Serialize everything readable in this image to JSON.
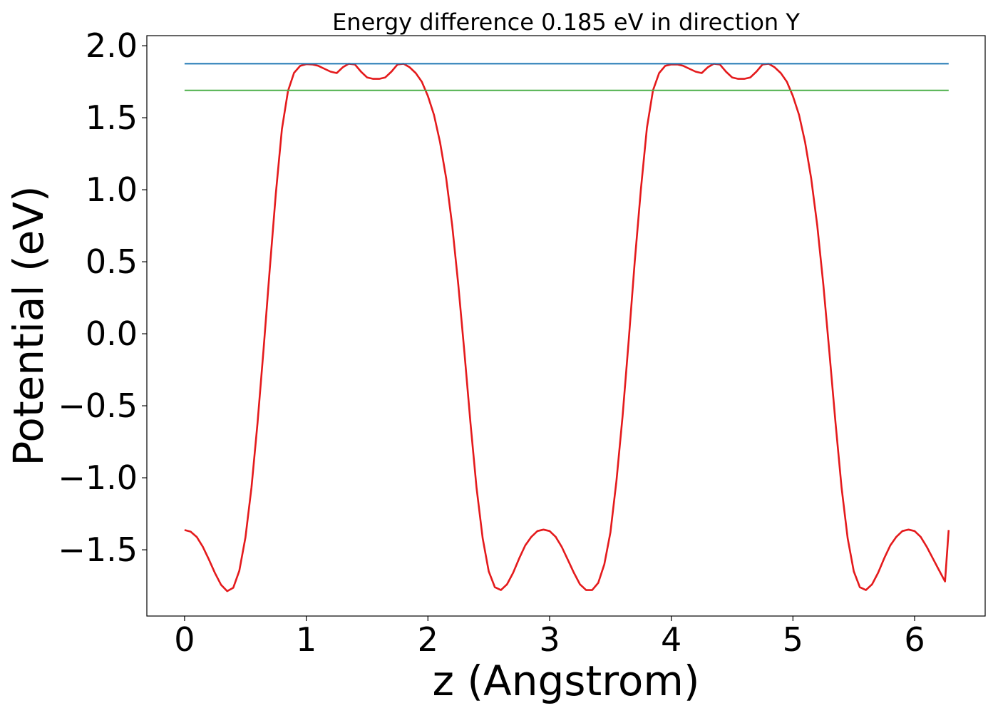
{
  "chart_data": {
    "type": "line",
    "title": "Energy difference 0.185 eV in direction Y",
    "xlabel": "z (Angstrom)",
    "ylabel": "Potential (eV)",
    "xlim": [
      -0.31,
      6.58
    ],
    "ylim": [
      -1.96,
      2.07
    ],
    "xticks": [
      0,
      1,
      2,
      3,
      4,
      5,
      6
    ],
    "yticks": [
      -1.5,
      -1.0,
      -0.5,
      0.0,
      0.5,
      1.0,
      1.5,
      2.0
    ],
    "xtick_labels": [
      "0",
      "1",
      "2",
      "3",
      "4",
      "5",
      "6"
    ],
    "ytick_labels": [
      "−1.5",
      "−1.0",
      "−0.5",
      "0.0",
      "0.5",
      "1.0",
      "1.5",
      "2.0"
    ],
    "grid": false,
    "legend": "none",
    "series": [
      {
        "color": "#e41a1c",
        "x": [
          0.0,
          0.05,
          0.1,
          0.15,
          0.2,
          0.25,
          0.3,
          0.35,
          0.4,
          0.45,
          0.5,
          0.55,
          0.6,
          0.65,
          0.7,
          0.75,
          0.8,
          0.85,
          0.9,
          0.95,
          1.0,
          1.05,
          1.1,
          1.15,
          1.2,
          1.25,
          1.3,
          1.35,
          1.4,
          1.45,
          1.5,
          1.55,
          1.6,
          1.65,
          1.7,
          1.75,
          1.8,
          1.85,
          1.9,
          1.95,
          2.0,
          2.05,
          2.1,
          2.15,
          2.2,
          2.25,
          2.3,
          2.35,
          2.4,
          2.45,
          2.5,
          2.55,
          2.6,
          2.65,
          2.7,
          2.75,
          2.8,
          2.85,
          2.9,
          2.95,
          3.0,
          3.05,
          3.1,
          3.15,
          3.2,
          3.25,
          3.3,
          3.35,
          3.4,
          3.45,
          3.5,
          3.55,
          3.6,
          3.65,
          3.7,
          3.75,
          3.8,
          3.85,
          3.9,
          3.95,
          4.0,
          4.05,
          4.1,
          4.15,
          4.2,
          4.25,
          4.3,
          4.35,
          4.4,
          4.45,
          4.5,
          4.55,
          4.6,
          4.65,
          4.7,
          4.75,
          4.8,
          4.85,
          4.9,
          4.95,
          5.0,
          5.05,
          5.1,
          5.15,
          5.2,
          5.25,
          5.3,
          5.35,
          5.4,
          5.45,
          5.5,
          5.55,
          5.6,
          5.65,
          5.7,
          5.75,
          5.8,
          5.85,
          5.9,
          5.95,
          6.0,
          6.05,
          6.1,
          6.15,
          6.2,
          6.25,
          6.28
        ],
        "y": [
          -1.363,
          -1.374,
          -1.411,
          -1.479,
          -1.567,
          -1.662,
          -1.743,
          -1.787,
          -1.764,
          -1.646,
          -1.415,
          -1.067,
          -0.618,
          -0.098,
          0.448,
          0.971,
          1.422,
          1.686,
          1.812,
          1.86,
          1.872,
          1.87,
          1.86,
          1.84,
          1.82,
          1.81,
          1.85,
          1.875,
          1.87,
          1.82,
          1.78,
          1.77,
          1.77,
          1.78,
          1.82,
          1.87,
          1.875,
          1.85,
          1.81,
          1.75,
          1.65,
          1.52,
          1.33,
          1.08,
          0.75,
          0.34,
          -0.13,
          -0.62,
          -1.07,
          -1.42,
          -1.65,
          -1.76,
          -1.78,
          -1.74,
          -1.66,
          -1.56,
          -1.47,
          -1.41,
          -1.37,
          -1.36,
          -1.37,
          -1.41,
          -1.48,
          -1.57,
          -1.66,
          -1.74,
          -1.78,
          -1.78,
          -1.73,
          -1.6,
          -1.38,
          -1.02,
          -0.57,
          -0.05,
          0.5,
          1.0,
          1.43,
          1.69,
          1.81,
          1.86,
          1.87,
          1.87,
          1.86,
          1.84,
          1.82,
          1.81,
          1.85,
          1.875,
          1.87,
          1.82,
          1.78,
          1.77,
          1.77,
          1.78,
          1.82,
          1.87,
          1.875,
          1.85,
          1.81,
          1.75,
          1.65,
          1.52,
          1.33,
          1.08,
          0.75,
          0.34,
          -0.13,
          -0.62,
          -1.07,
          -1.42,
          -1.65,
          -1.76,
          -1.78,
          -1.74,
          -1.66,
          -1.56,
          -1.47,
          -1.41,
          -1.37,
          -1.36,
          -1.37,
          -1.41,
          -1.48,
          -1.56,
          -1.64,
          -1.72,
          -1.363
        ]
      },
      {
        "color": "#1f77b4",
        "x": [
          0.0,
          6.28
        ],
        "y": [
          1.875,
          1.875
        ]
      },
      {
        "color": "#4daf4a",
        "x": [
          0.0,
          6.28
        ],
        "y": [
          1.69,
          1.69
        ]
      }
    ]
  }
}
